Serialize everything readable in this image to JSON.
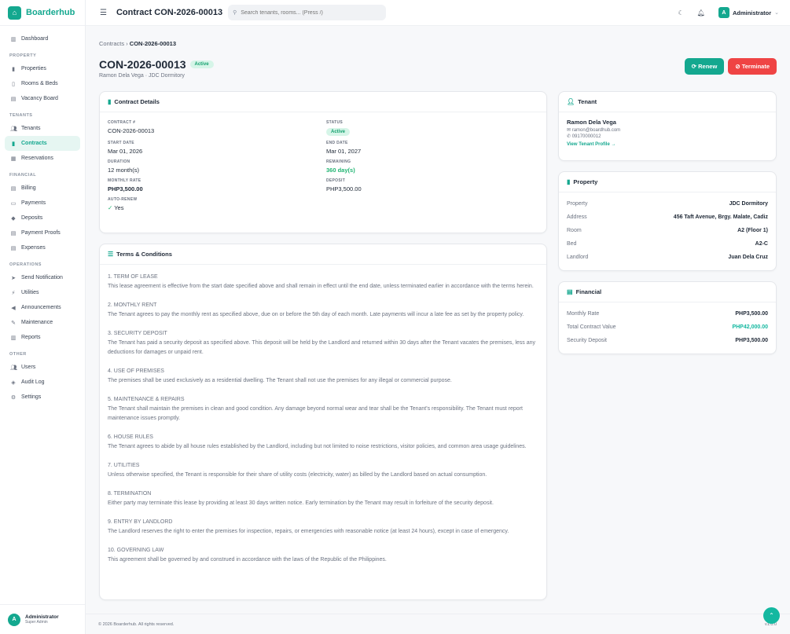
{
  "app": {
    "name": "Boarderhub",
    "icon": "home-icon"
  },
  "sidebar": {
    "items": [
      {
        "label": "Dashboard",
        "icon": "dashboard-icon"
      },
      {
        "section": "PROPERTY"
      },
      {
        "label": "Properties",
        "icon": "building-icon"
      },
      {
        "label": "Rooms & Beds",
        "icon": "door-icon"
      },
      {
        "label": "Vacancy Board",
        "icon": "board-icon"
      },
      {
        "section": "TENANTS"
      },
      {
        "label": "Tenants",
        "icon": "users-icon"
      },
      {
        "label": "Contracts",
        "icon": "file-icon",
        "active": true
      },
      {
        "label": "Reservations",
        "icon": "calendar-icon"
      },
      {
        "section": "FINANCIAL"
      },
      {
        "label": "Billing",
        "icon": "invoice-icon"
      },
      {
        "label": "Payments",
        "icon": "money-icon"
      },
      {
        "label": "Deposits",
        "icon": "piggy-icon"
      },
      {
        "label": "Payment Proofs",
        "icon": "receipt-icon"
      },
      {
        "label": "Expenses",
        "icon": "expense-icon"
      },
      {
        "section": "OPERATIONS"
      },
      {
        "label": "Send Notification",
        "icon": "send-icon"
      },
      {
        "label": "Utilities",
        "icon": "bolt-icon"
      },
      {
        "label": "Announcements",
        "icon": "megaphone-icon"
      },
      {
        "label": "Maintenance",
        "icon": "wrench-icon"
      },
      {
        "label": "Reports",
        "icon": "chart-icon"
      },
      {
        "section": "OTHER"
      },
      {
        "label": "Users",
        "icon": "users-icon"
      },
      {
        "label": "Audit Log",
        "icon": "shield-icon"
      },
      {
        "label": "Settings",
        "icon": "gear-icon"
      }
    ],
    "user": {
      "initial": "A",
      "name": "Administrator",
      "role": "Super Admin"
    }
  },
  "header": {
    "title": "Contract CON-2026-00013",
    "search_placeholder": "Search tenants, rooms... (Press /)",
    "user_initial": "A",
    "user_name": "Administrator"
  },
  "breadcrumb": {
    "parent": "Contracts",
    "current": "CON-2026-00013"
  },
  "page": {
    "title": "CON-2026-00013",
    "status": "Active",
    "subtitle": "Ramon Dela Vega · JDC Dormitory",
    "renew": "Renew",
    "terminate": "Terminate"
  },
  "details": {
    "title": "Contract Details",
    "fields": [
      {
        "label": "CONTRACT #",
        "value": "CON-2026-00013"
      },
      {
        "label": "STATUS",
        "value": "Active",
        "badge": true
      },
      {
        "label": "START DATE",
        "value": "Mar 01, 2026"
      },
      {
        "label": "END DATE",
        "value": "Mar 01, 2027"
      },
      {
        "label": "DURATION",
        "value": "12 month(s)"
      },
      {
        "label": "REMAINING",
        "value": "360 day(s)",
        "color": "#22b573"
      },
      {
        "label": "MONTHLY RATE",
        "value": "PHP3,500.00",
        "bold": true
      },
      {
        "label": "DEPOSIT",
        "value": "PHP3,500.00"
      },
      {
        "label": "AUTO-RENEW",
        "value": "Yes",
        "check": true
      }
    ]
  },
  "terms": {
    "title": "Terms & Conditions",
    "items": [
      {
        "h": "1. TERM OF LEASE",
        "p": "This lease agreement is effective from the start date specified above and shall remain in effect until the end date, unless terminated earlier in accordance with the terms herein."
      },
      {
        "h": "2. MONTHLY RENT",
        "p": "The Tenant agrees to pay the monthly rent as specified above, due on or before the 5th day of each month. Late payments will incur a late fee as set by the property policy."
      },
      {
        "h": "3. SECURITY DEPOSIT",
        "p": "The Tenant has paid a security deposit as specified above. This deposit will be held by the Landlord and returned within 30 days after the Tenant vacates the premises, less any deductions for damages or unpaid rent."
      },
      {
        "h": "4. USE OF PREMISES",
        "p": "The premises shall be used exclusively as a residential dwelling. The Tenant shall not use the premises for any illegal or commercial purpose."
      },
      {
        "h": "5. MAINTENANCE & REPAIRS",
        "p": "The Tenant shall maintain the premises in clean and good condition. Any damage beyond normal wear and tear shall be the Tenant's responsibility. The Tenant must report maintenance issues promptly."
      },
      {
        "h": "6. HOUSE RULES",
        "p": "The Tenant agrees to abide by all house rules established by the Landlord, including but not limited to noise restrictions, visitor policies, and common area usage guidelines."
      },
      {
        "h": "7. UTILITIES",
        "p": "Unless otherwise specified, the Tenant is responsible for their share of utility costs (electricity, water) as billed by the Landlord based on actual consumption."
      },
      {
        "h": "8. TERMINATION",
        "p": "Either party may terminate this lease by providing at least 30 days written notice. Early termination by the Tenant may result in forfeiture of the security deposit."
      },
      {
        "h": "9. ENTRY BY LANDLORD",
        "p": "The Landlord reserves the right to enter the premises for inspection, repairs, or emergencies with reasonable notice (at least 24 hours), except in case of emergency."
      },
      {
        "h": "10. GOVERNING LAW",
        "p": "This agreement shall be governed by and construed in accordance with the laws of the Republic of the Philippines."
      }
    ]
  },
  "tenant": {
    "title": "Tenant",
    "name": "Ramon Dela Vega",
    "email": "ramon@boardhub.com",
    "phone": "09170000012",
    "link": "View Tenant Profile →"
  },
  "property": {
    "title": "Property",
    "rows": [
      {
        "k": "Property",
        "v": "JDC Dormitory"
      },
      {
        "k": "Address",
        "v": "456 Taft Avenue, Brgy. Malate, Cadiz"
      },
      {
        "k": "Room",
        "v": "A2 (Floor 1)"
      },
      {
        "k": "Bed",
        "v": "A2-C"
      },
      {
        "k": "Landlord",
        "v": "Juan Dela Cruz"
      }
    ]
  },
  "financial": {
    "title": "Financial",
    "rows": [
      {
        "k": "Monthly Rate",
        "v": "PHP3,500.00"
      },
      {
        "k": "Total Contract Value",
        "v": "PHP42,000.00",
        "color": "#14b8a0"
      },
      {
        "k": "Security Deposit",
        "v": "PHP3,500.00"
      }
    ]
  },
  "footer": {
    "copyright": "© 2026 Boarderhub. All rights reserved.",
    "version": "v1.0.0"
  },
  "colors": {
    "accent": "#14a88f",
    "danger": "#ef4444"
  }
}
